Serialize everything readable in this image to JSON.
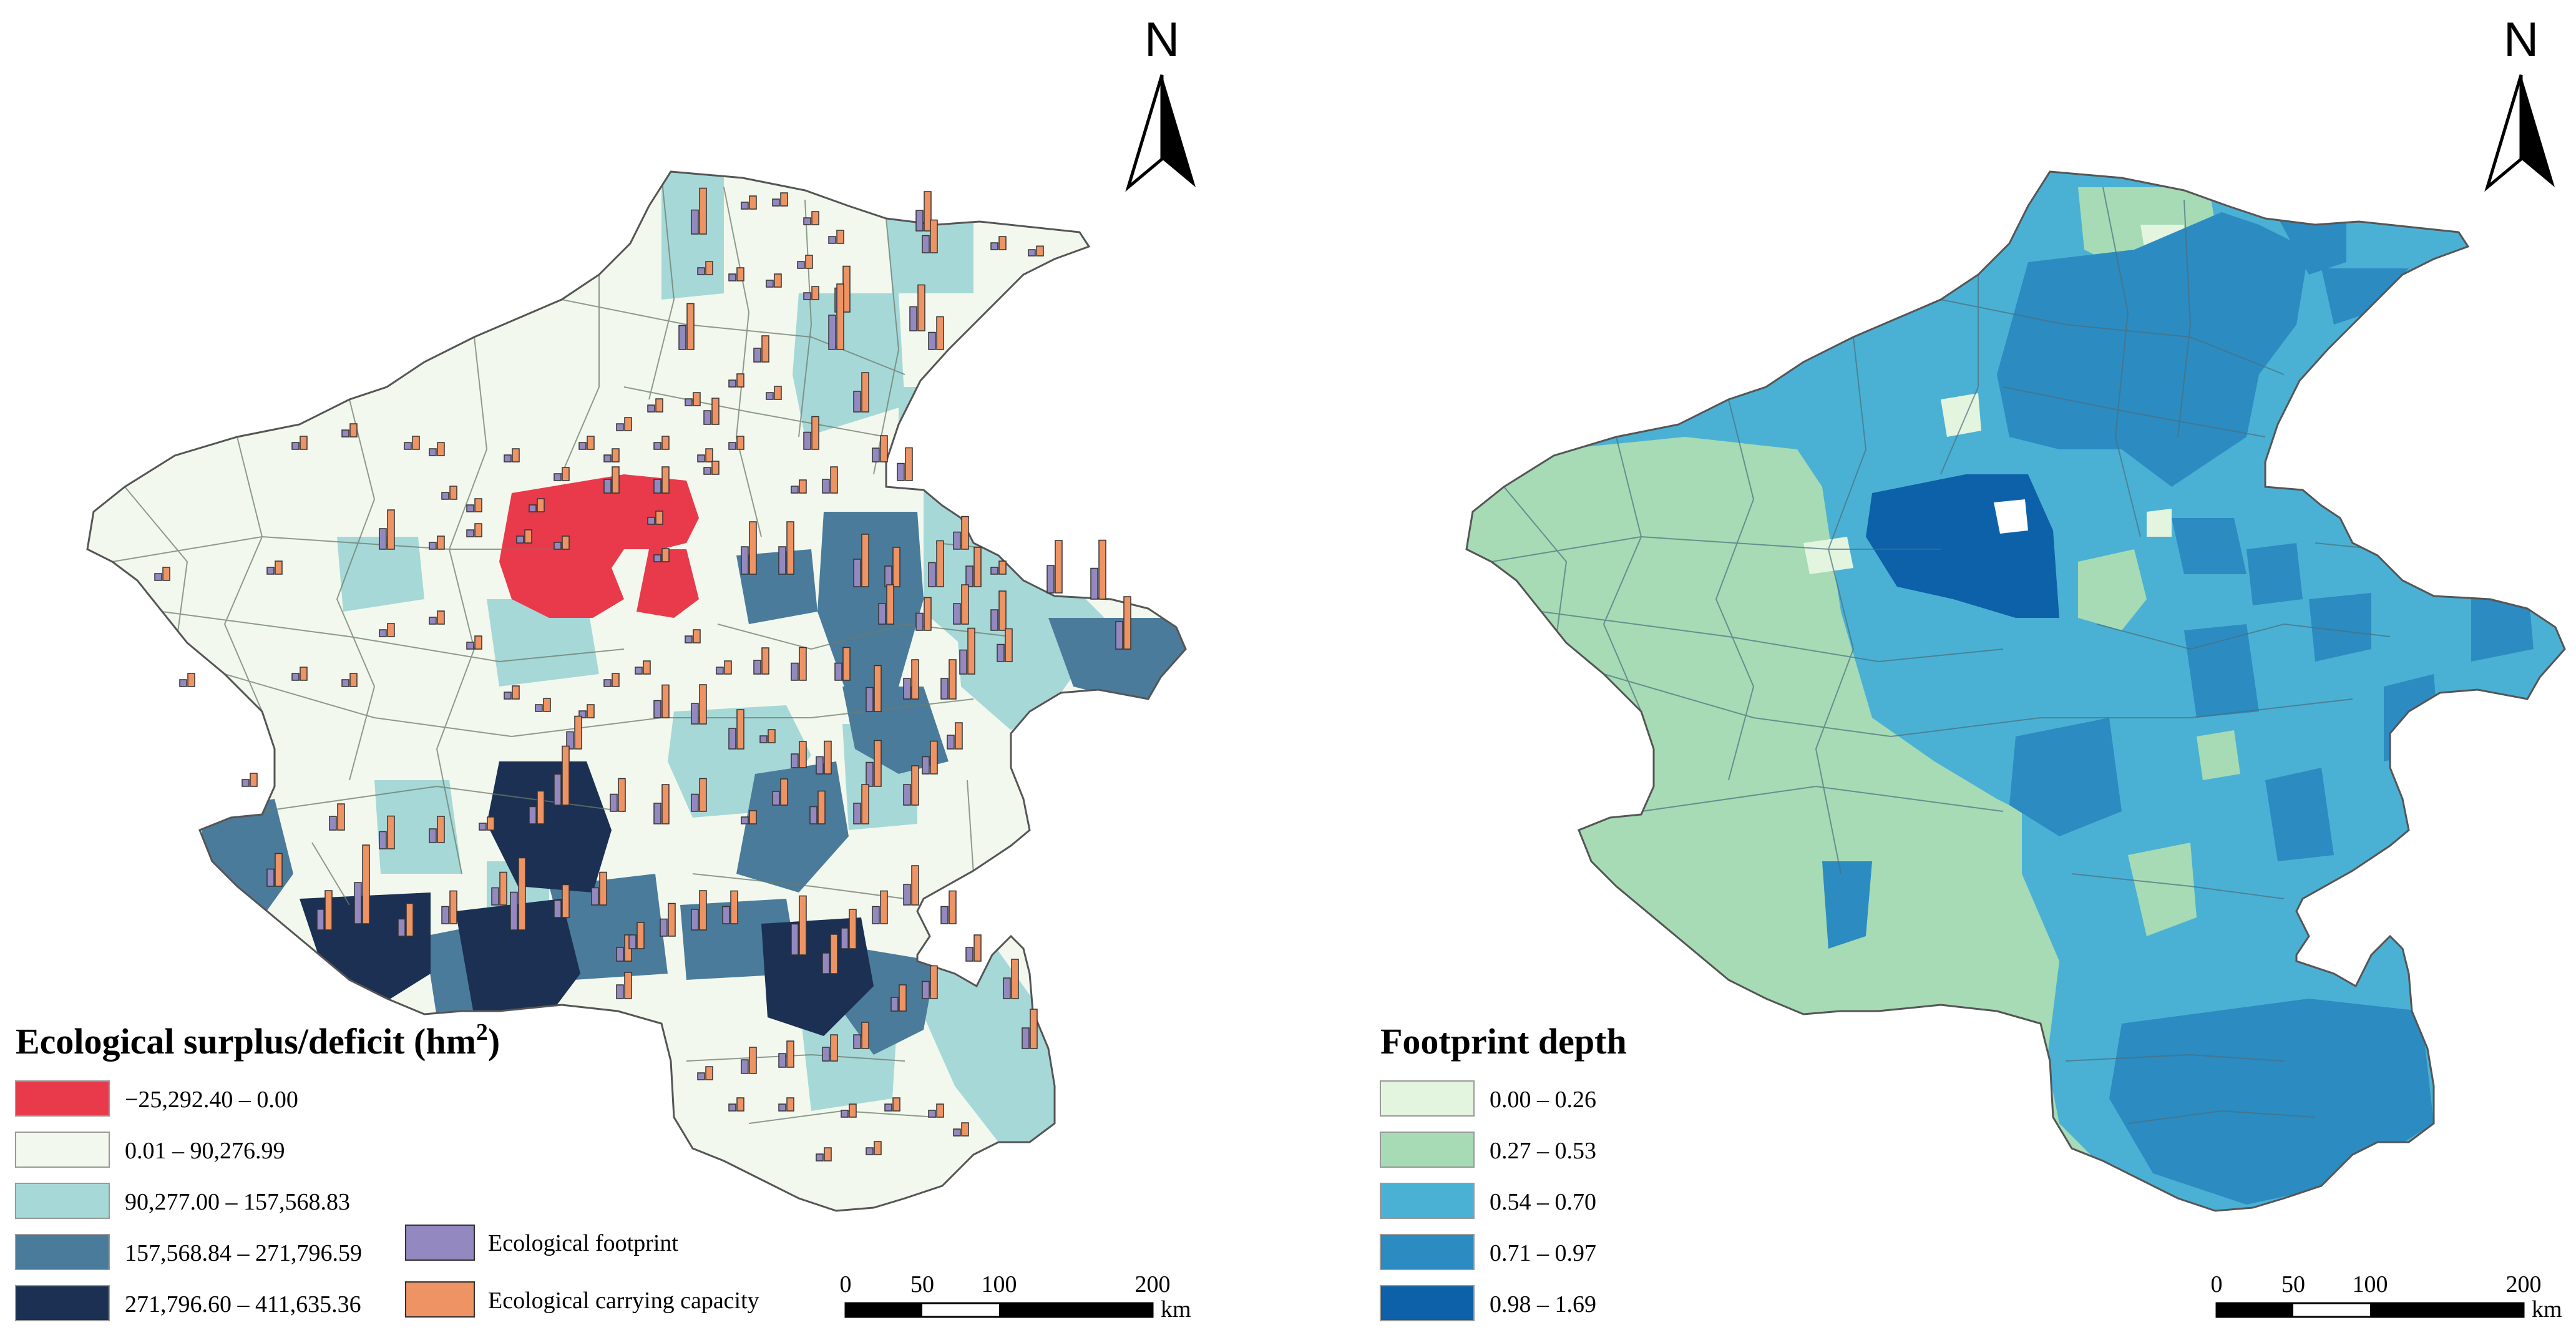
{
  "left_map": {
    "legend_title": "Ecological surplus/deficit (hm",
    "legend_title_sup": "2",
    "legend_title_close": ")",
    "classes": [
      {
        "label": "−25,292.40 – 0.00",
        "color": "#e83a4b"
      },
      {
        "label": "0.01 – 90,276.99",
        "color": "#f2f8ed"
      },
      {
        "label": "90,277.00 – 157,568.83",
        "color": "#a7d8d8"
      },
      {
        "label": "157,568.84 – 271,796.59",
        "color": "#4a7b9b"
      },
      {
        "label": "271,796.60 – 411,635.36",
        "color": "#1b3052"
      }
    ],
    "bar_legend": [
      {
        "label": "Ecological footprint",
        "color": "#9488c0"
      },
      {
        "label": "Ecological carrying capacity",
        "color": "#ee9363"
      }
    ],
    "north": "N",
    "scale": {
      "ticks": [
        "0",
        "50",
        "100",
        "200"
      ],
      "unit": "km"
    }
  },
  "right_map": {
    "legend_title": "Footprint depth",
    "classes": [
      {
        "label": "0.00 – 0.26",
        "color": "#e3f4df"
      },
      {
        "label": "0.27 – 0.53",
        "color": "#a6dbb5"
      },
      {
        "label": "0.54 – 0.70",
        "color": "#4bb1d4"
      },
      {
        "label": "0.71 – 0.97",
        "color": "#2c8bc1"
      },
      {
        "label": "0.98 – 1.69",
        "color": "#0c61a8"
      }
    ],
    "north": "N",
    "scale": {
      "ticks": [
        "0",
        "50",
        "100",
        "200"
      ],
      "unit": "km"
    }
  }
}
